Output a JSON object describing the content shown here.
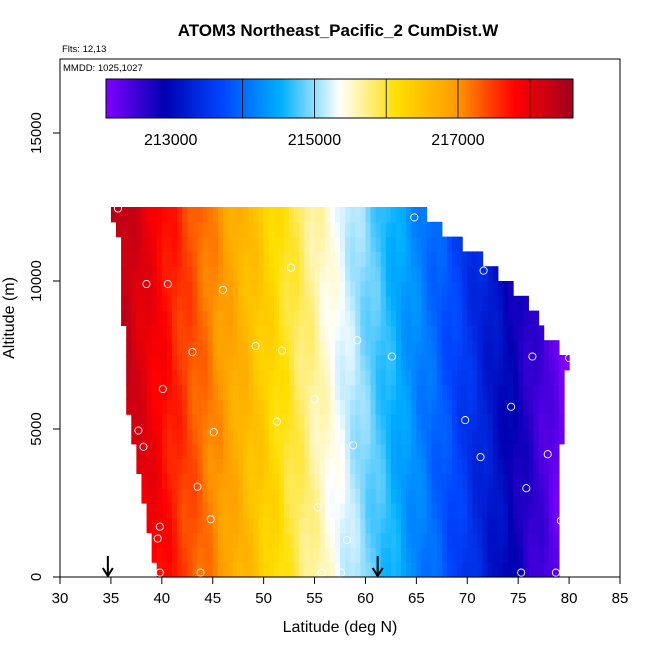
{
  "chart_data": {
    "type": "heatmap",
    "title": "ATOM3 Northeast_Pacific_2 CumDist.W",
    "flights_label": "Flts: 12,13",
    "dates_label": "MMDD: 1025,1027",
    "xlabel": "Latitude (deg N)",
    "ylabel": "Altitude (m)",
    "xlim": [
      30,
      85
    ],
    "ylim": [
      0,
      17500
    ],
    "x_ticks": [
      "30",
      "35",
      "40",
      "45",
      "50",
      "55",
      "60",
      "65",
      "70",
      "75",
      "80",
      "85"
    ],
    "y_ticks": [
      "0",
      "5000",
      "10000",
      "15000"
    ],
    "grid": false,
    "colorbar": {
      "placement": "top",
      "range": [
        212100,
        218600
      ],
      "tick_labels": [
        "213000",
        "215000",
        "217000"
      ],
      "boundaries": [
        214000,
        215000,
        216000,
        217000,
        218000
      ],
      "colors": [
        "#7f00ff",
        "#0000b2",
        "#0046ff",
        "#00b0ff",
        "#ffffff",
        "#ffde00",
        "#ff9a00",
        "#ff0000",
        "#a00020"
      ]
    },
    "value_model": {
      "west_latitude": 35,
      "west_value": 218500,
      "east_latitude": 80,
      "east_value": 212100
    },
    "domain": {
      "lat_step": 0.5,
      "alt_step": 500,
      "west_edge": [
        [
          0,
          39.5
        ],
        [
          1000,
          39.0
        ],
        [
          2000,
          38.5
        ],
        [
          3000,
          38.0
        ],
        [
          4000,
          37.5
        ],
        [
          5000,
          37.0
        ],
        [
          6000,
          36.5
        ],
        [
          8000,
          36.5
        ],
        [
          9000,
          36.0
        ],
        [
          11000,
          36.0
        ],
        [
          12000,
          35.0
        ],
        [
          12500,
          35.0
        ]
      ],
      "east_edge": [
        [
          0,
          79.0
        ],
        [
          2000,
          79.0
        ],
        [
          7000,
          79.5
        ],
        [
          7500,
          80.0
        ],
        [
          8000,
          77.5
        ],
        [
          9000,
          76.5
        ],
        [
          10000,
          74.0
        ],
        [
          11000,
          70.5
        ],
        [
          11500,
          68.0
        ],
        [
          12000,
          66.5
        ],
        [
          12500,
          65.0
        ]
      ]
    },
    "observations": [
      [
        39.8,
        150
      ],
      [
        43.8,
        150
      ],
      [
        55.7,
        150
      ],
      [
        57.6,
        150
      ],
      [
        75.3,
        150
      ],
      [
        78.7,
        150
      ],
      [
        39.6,
        1300
      ],
      [
        58.2,
        1250
      ],
      [
        39.8,
        1700
      ],
      [
        44.8,
        1950
      ],
      [
        56.4,
        1850
      ],
      [
        55.3,
        2350
      ],
      [
        79.2,
        1900
      ],
      [
        43.5,
        3050
      ],
      [
        75.8,
        3000
      ],
      [
        38.2,
        4400
      ],
      [
        58.8,
        4450
      ],
      [
        71.3,
        4050
      ],
      [
        77.9,
        4150
      ],
      [
        37.7,
        4950
      ],
      [
        45.1,
        4900
      ],
      [
        51.3,
        5250
      ],
      [
        69.8,
        5300
      ],
      [
        74.3,
        5750
      ],
      [
        55.0,
        6000
      ],
      [
        40.1,
        6350
      ],
      [
        43.0,
        7600
      ],
      [
        49.2,
        7800
      ],
      [
        51.8,
        7650
      ],
      [
        59.2,
        8000
      ],
      [
        62.6,
        7450
      ],
      [
        76.4,
        7450
      ],
      [
        80.0,
        7400
      ],
      [
        38.5,
        9900
      ],
      [
        40.6,
        9900
      ],
      [
        46.0,
        9700
      ],
      [
        52.7,
        10450
      ],
      [
        71.6,
        10350
      ],
      [
        35.7,
        12450
      ],
      [
        64.8,
        12150
      ]
    ],
    "arrows_latitude": [
      34.7,
      61.2
    ]
  }
}
